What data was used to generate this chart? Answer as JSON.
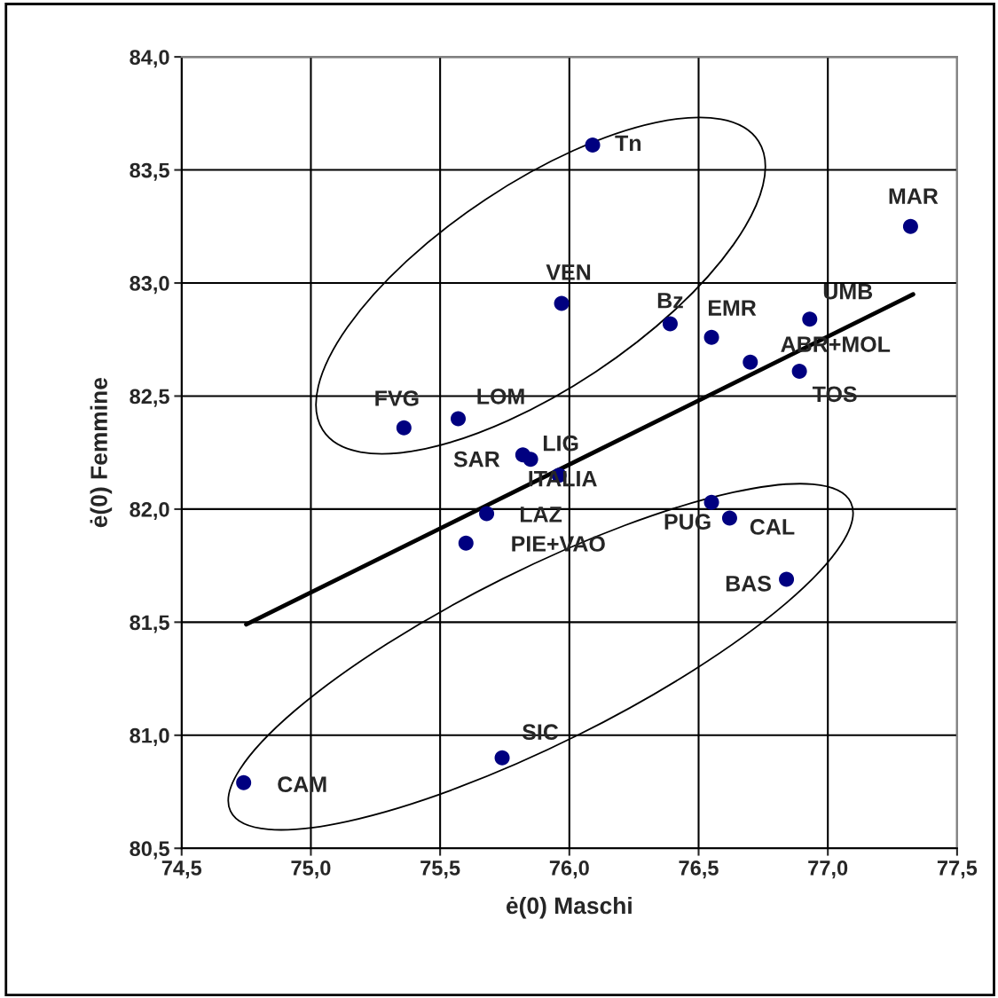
{
  "chart_data": {
    "type": "scatter",
    "xlabel": "ė(0) Maschi",
    "ylabel": "ė(0) Femmine",
    "xlim": [
      74.5,
      77.5
    ],
    "ylim": [
      80.5,
      84.0
    ],
    "xticks": [
      {
        "value": 74.5,
        "label": "74,5"
      },
      {
        "value": 75.0,
        "label": "75,0"
      },
      {
        "value": 75.5,
        "label": "75,5"
      },
      {
        "value": 76.0,
        "label": "76,0"
      },
      {
        "value": 76.5,
        "label": "76,5"
      },
      {
        "value": 77.0,
        "label": "77,0"
      },
      {
        "value": 77.5,
        "label": "77,5"
      }
    ],
    "yticks": [
      {
        "value": 80.5,
        "label": "80,5"
      },
      {
        "value": 81.0,
        "label": "81,0"
      },
      {
        "value": 81.5,
        "label": "81,5"
      },
      {
        "value": 82.0,
        "label": "82,0"
      },
      {
        "value": 82.5,
        "label": "82,5"
      },
      {
        "value": 83.0,
        "label": "83,0"
      },
      {
        "value": 83.5,
        "label": "83,5"
      },
      {
        "value": 84.0,
        "label": "84,0"
      }
    ],
    "grid": true,
    "marker": "circle",
    "series": [
      {
        "color": "#000080",
        "x": [
          76.09,
          77.32,
          75.97,
          76.39,
          76.55,
          76.93,
          76.7,
          76.89,
          75.36,
          75.57,
          75.82,
          75.85,
          75.96,
          75.68,
          75.6,
          76.55,
          76.62,
          76.84,
          75.74,
          74.74
        ],
        "values": [
          83.61,
          83.25,
          82.91,
          82.82,
          82.76,
          82.84,
          82.65,
          82.61,
          82.36,
          82.4,
          82.24,
          82.22,
          82.15,
          81.98,
          81.85,
          82.03,
          81.96,
          81.69,
          80.9,
          80.79
        ]
      },
      {
        "type": "line",
        "marker": "none",
        "color": "#000000",
        "x": [
          74.75,
          77.33
        ],
        "values": [
          81.49,
          82.95
        ]
      }
    ],
    "annotations": [
      {
        "text": "Tn",
        "x": 76.09,
        "y": 83.61
      },
      {
        "text": "MAR",
        "x": 77.32,
        "y": 83.25
      },
      {
        "text": "VEN",
        "x": 75.97,
        "y": 82.91
      },
      {
        "text": "Bz",
        "x": 76.39,
        "y": 82.82
      },
      {
        "text": "EMR",
        "x": 76.55,
        "y": 82.76
      },
      {
        "text": "UMB",
        "x": 76.93,
        "y": 82.84
      },
      {
        "text": "ABR+MOL",
        "x": 76.7,
        "y": 82.65
      },
      {
        "text": "TOS",
        "x": 76.89,
        "y": 82.61
      },
      {
        "text": "FVG",
        "x": 75.36,
        "y": 82.36
      },
      {
        "text": "LOM",
        "x": 75.57,
        "y": 82.4
      },
      {
        "text": "SAR",
        "x": 75.82,
        "y": 82.24
      },
      {
        "text": "LIG",
        "x": 75.85,
        "y": 82.22
      },
      {
        "text": "ITALIA",
        "x": 75.96,
        "y": 82.15
      },
      {
        "text": "LAZ",
        "x": 75.68,
        "y": 81.98
      },
      {
        "text": "PIE+VAO",
        "x": 75.6,
        "y": 81.85
      },
      {
        "text": "PUG",
        "x": 76.55,
        "y": 82.03
      },
      {
        "text": "CAL",
        "x": 76.62,
        "y": 81.96
      },
      {
        "text": "BAS",
        "x": 76.84,
        "y": 81.69
      },
      {
        "text": "SIC",
        "x": 75.74,
        "y": 80.9
      },
      {
        "text": "CAM",
        "x": 74.74,
        "y": 80.79
      }
    ]
  }
}
